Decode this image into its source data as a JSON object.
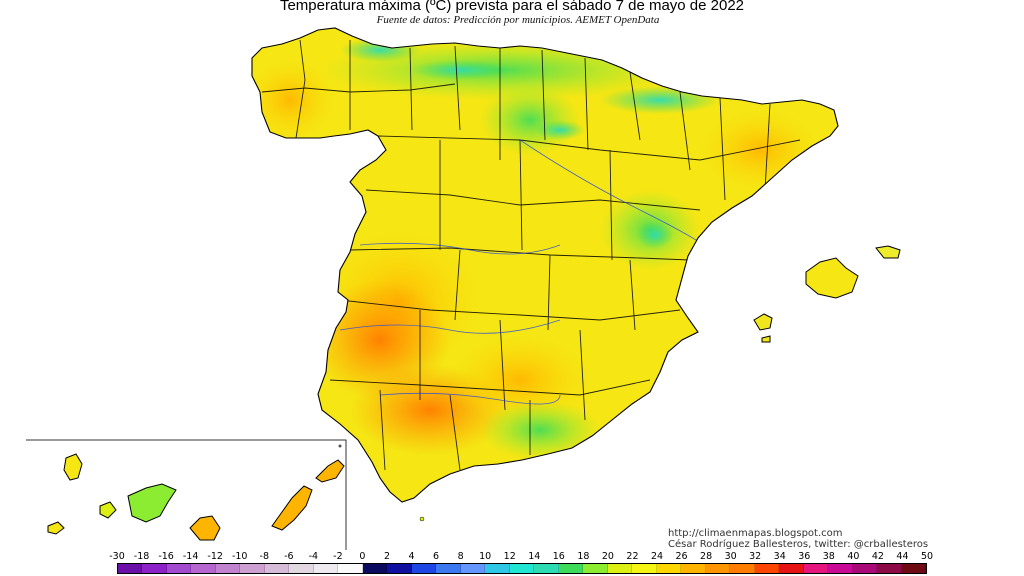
{
  "map": {
    "title": "Temperatura máxima (ºC) prevista para el sábado 7 de mayo de 2022",
    "subtitle": "Fuente de datos: Predicción por municipios. AEMET OpenData",
    "credit_url": "http://climaenmapas.blogspot.com",
    "credit_author": "César Rodríguez Ballesteros, twitter: @crballesteros",
    "regions": [
      "Península Ibérica",
      "Islas Baleares",
      "Islas Canarias"
    ],
    "legend": {
      "unit": "ºC",
      "labels": [
        "-30",
        "-18",
        "-16",
        "-14",
        "-12",
        "-10",
        "-8",
        "-6",
        "-4",
        "-2",
        "0",
        "2",
        "4",
        "6",
        "8",
        "10",
        "12",
        "14",
        "16",
        "18",
        "20",
        "22",
        "24",
        "26",
        "28",
        "30",
        "32",
        "34",
        "36",
        "38",
        "40",
        "42",
        "44",
        "50"
      ],
      "colors": [
        "#6a0fa8",
        "#8c22c8",
        "#a24bd0",
        "#b566cf",
        "#c283ce",
        "#cda0d1",
        "#d6bcd9",
        "#e2d8e2",
        "#efeaef",
        "#fafafa",
        "#0a0a60",
        "#1010a0",
        "#1e46e6",
        "#3c78f0",
        "#6496ff",
        "#2ec8e6",
        "#20e6d2",
        "#2edcb4",
        "#3cdc5a",
        "#8cec32",
        "#dcf014",
        "#f5f514",
        "#ffd700",
        "#ffb400",
        "#ff9600",
        "#ff7d00",
        "#ff4600",
        "#e61414",
        "#e6147d",
        "#c80a96",
        "#aa0a78",
        "#8c0a46",
        "#6e0a14"
      ]
    }
  }
}
